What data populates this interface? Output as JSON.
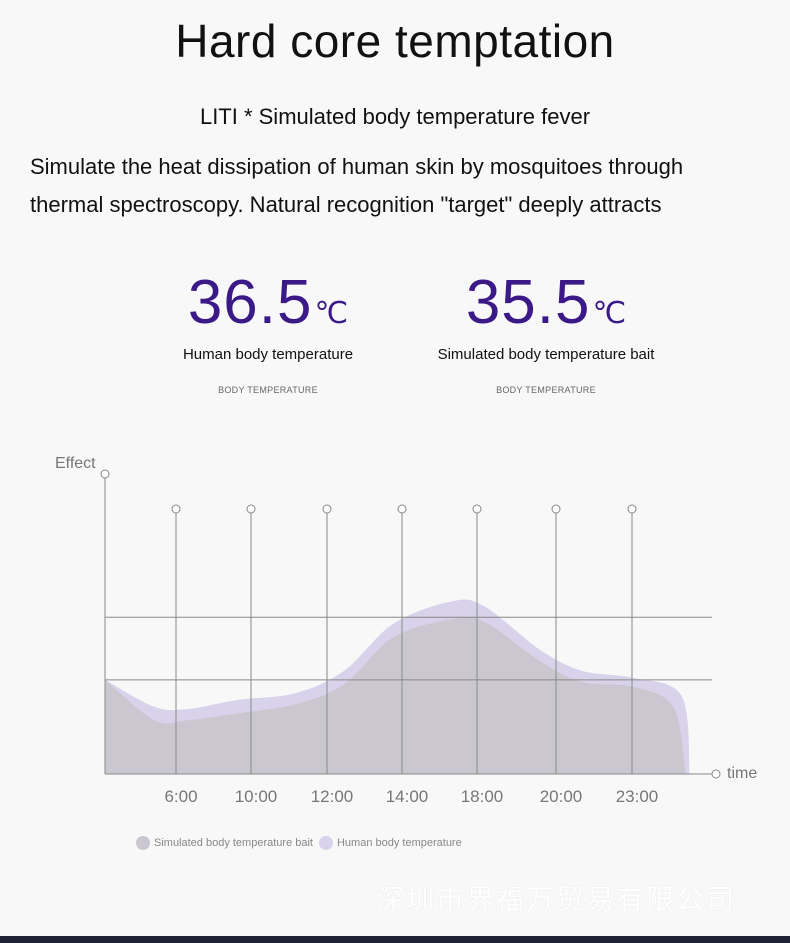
{
  "header": {
    "title": "Hard core temptation",
    "subtitle": "LITI * Simulated body temperature fever",
    "description_line1": "Simulate the heat dissipation of human skin by mosquitoes through",
    "description_line2": "thermal spectroscopy. Natural recognition \"target\" deeply attracts"
  },
  "temps": [
    {
      "value": "36.5",
      "unit": "℃",
      "label": "Human body temperature",
      "caption": "BODY TEMPERATURE"
    },
    {
      "value": "35.5",
      "unit": "℃",
      "label": "Simulated body temperature bait",
      "caption": "BODY TEMPERATURE"
    }
  ],
  "colors": {
    "accent": "#3b1a88",
    "human_series": "#d8d3ea",
    "bait_series": "#cac7d0",
    "axis": "#888888"
  },
  "chart_data": {
    "type": "area",
    "ylabel": "Effect",
    "xlabel": "time",
    "categories": [
      "6:00",
      "10:00",
      "12:00",
      "14:00",
      "18:00",
      "20:00",
      "23:00"
    ],
    "grid": true,
    "legend_position": "bottom-left",
    "series": [
      {
        "name": "Human body temperature",
        "color": "#d8d3ea",
        "points": [
          [
            0.0,
            0.42
          ],
          [
            0.6,
            0.3
          ],
          [
            1.0,
            0.29
          ],
          [
            1.6,
            0.33
          ],
          [
            2.3,
            0.36
          ],
          [
            2.9,
            0.46
          ],
          [
            3.5,
            0.67
          ],
          [
            4.2,
            0.77
          ],
          [
            4.6,
            0.75
          ],
          [
            5.3,
            0.55
          ],
          [
            5.8,
            0.46
          ],
          [
            6.4,
            0.43
          ],
          [
            7.0,
            0.35
          ],
          [
            7.1,
            0.0
          ]
        ]
      },
      {
        "name": "Simulated body temperature bait",
        "color": "#cac7d0",
        "points": [
          [
            0.0,
            0.42
          ],
          [
            0.6,
            0.24
          ],
          [
            1.0,
            0.24
          ],
          [
            1.6,
            0.27
          ],
          [
            2.3,
            0.31
          ],
          [
            2.9,
            0.4
          ],
          [
            3.5,
            0.61
          ],
          [
            4.2,
            0.69
          ],
          [
            4.6,
            0.68
          ],
          [
            5.3,
            0.5
          ],
          [
            5.8,
            0.41
          ],
          [
            6.4,
            0.39
          ],
          [
            6.9,
            0.3
          ],
          [
            7.05,
            0.0
          ]
        ]
      }
    ]
  },
  "legend": {
    "items": [
      {
        "label": "Simulated body temperature bait",
        "color": "#cac7d0"
      },
      {
        "label": "Human body temperature",
        "color": "#d8d3ea"
      }
    ]
  },
  "watermark": "深圳市界福万贸易有限公司"
}
